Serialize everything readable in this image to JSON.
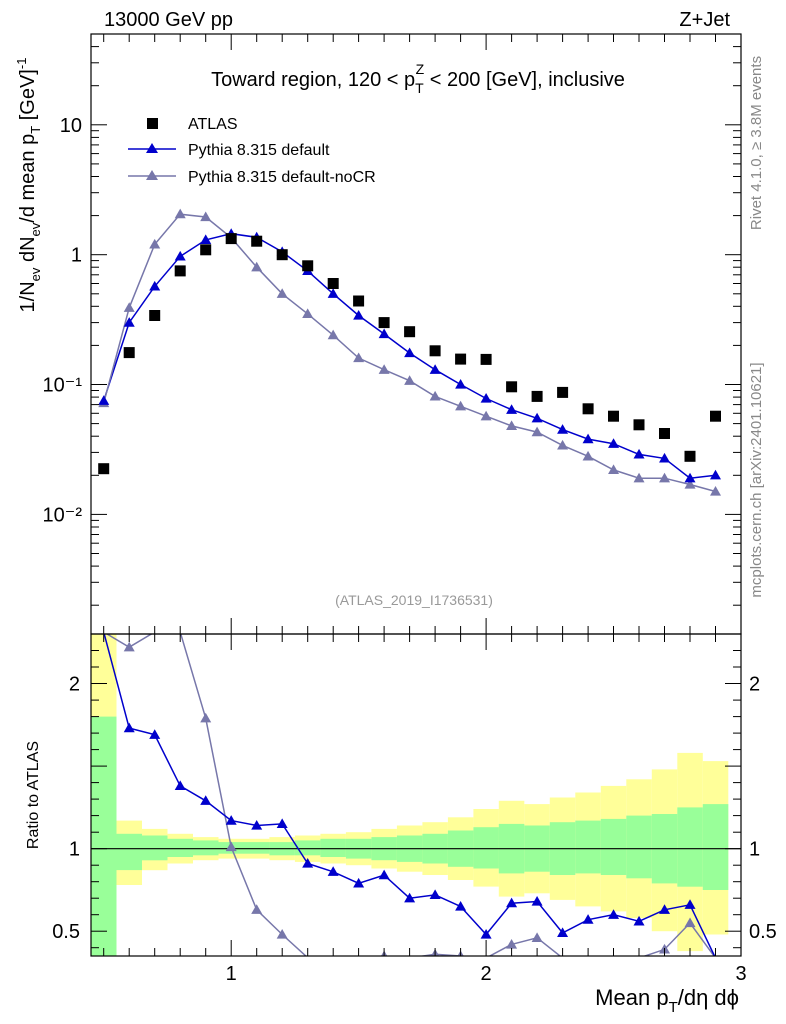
{
  "header": {
    "energy_label": "13000 GeV pp",
    "process_label": "Z+Jet"
  },
  "side_labels": {
    "rivet": "Rivet 4.1.0, ≥ 3.8M events",
    "source": "mcplots.cern.ch [arXiv:2401.10621]"
  },
  "colors": {
    "atlas": "#000000",
    "default": "#0000cc",
    "nocr": "#7777aa",
    "band_inner": "#99ff99",
    "band_outer": "#ffff99"
  },
  "chart_data": [
    {
      "type": "scatter",
      "panel": "main",
      "title_parts": {
        "pre": "Toward region, 120 < p",
        "sub": "T",
        "sup": "Z",
        "post": " < 200 [GeV], inclusive"
      },
      "ylabel": "1/N_ev dN_ev/d mean p_T [GeV]^-1",
      "ylabel_parts": {
        "a": "1/N",
        "a_sub": "ev",
        "b": " dN",
        "b_sub": "ev",
        "c": "/d mean p",
        "c_sub": "T",
        "d": " [GeV]",
        "d_sup": "-1"
      },
      "yscale": "log",
      "ylim": [
        0.0012,
        50
      ],
      "xlim": [
        0.45,
        3.0
      ],
      "y_ticks": [
        {
          "value": 10,
          "label": "10"
        },
        {
          "value": 1,
          "label": "1"
        },
        {
          "value": 0.1,
          "label": "10⁻¹"
        },
        {
          "value": 0.01,
          "label": "10⁻²"
        }
      ],
      "analysis_id": "(ATLAS_2019_I1736531)",
      "legend": [
        {
          "name": "ATLAS",
          "marker": "square"
        },
        {
          "name": "Pythia 8.315 default",
          "marker": "triangle"
        },
        {
          "name": "Pythia 8.315 default-noCR",
          "marker": "triangle"
        }
      ],
      "x": [
        0.5,
        0.6,
        0.7,
        0.8,
        0.9,
        1.0,
        1.1,
        1.2,
        1.3,
        1.4,
        1.5,
        1.6,
        1.7,
        1.8,
        1.9,
        2.0,
        2.1,
        2.2,
        2.3,
        2.4,
        2.5,
        2.6,
        2.7,
        2.8,
        2.9
      ],
      "series": [
        {
          "name": "ATLAS",
          "values": [
            0.0225,
            0.176,
            0.34,
            0.75,
            1.09,
            1.33,
            1.27,
            1.0,
            0.82,
            0.6,
            0.44,
            0.3,
            0.255,
            0.182,
            0.157,
            0.156,
            0.096,
            0.081,
            0.087,
            0.065,
            0.057,
            0.049,
            0.042,
            0.028,
            0.057
          ]
        },
        {
          "name": "Pythia 8.315 default",
          "values": [
            0.075,
            0.3,
            0.57,
            0.97,
            1.3,
            1.45,
            1.36,
            1.05,
            0.75,
            0.5,
            0.34,
            0.245,
            0.175,
            0.13,
            0.1,
            0.078,
            0.064,
            0.055,
            0.045,
            0.038,
            0.035,
            0.029,
            0.027,
            0.019,
            0.02
          ]
        },
        {
          "name": "Pythia 8.315 default-noCR",
          "values": [
            0.072,
            0.39,
            1.2,
            2.05,
            1.95,
            1.35,
            0.8,
            0.5,
            0.35,
            0.24,
            0.16,
            0.13,
            0.107,
            0.081,
            0.068,
            0.057,
            0.048,
            0.043,
            0.034,
            0.028,
            0.022,
            0.019,
            0.019,
            0.017,
            0.015
          ]
        }
      ]
    },
    {
      "type": "line",
      "panel": "ratio",
      "ylabel": "Ratio to ATLAS",
      "xlabel_parts": {
        "a": "Mean p",
        "a_sub": "T",
        "b": "/dη dϕ"
      },
      "ylim": [
        0.35,
        2.3
      ],
      "xlim": [
        0.45,
        3.0
      ],
      "y_ticks": [
        {
          "value": 2,
          "label": "2"
        },
        {
          "value": 1.5,
          "label": ""
        },
        {
          "value": 1,
          "label": "1"
        },
        {
          "value": 0.5,
          "label": "0.5"
        }
      ],
      "x_ticks": [
        {
          "value": 1,
          "label": "1"
        },
        {
          "value": 2,
          "label": "2"
        },
        {
          "value": 3,
          "label": "3"
        }
      ],
      "bin_edges": [
        0.45,
        0.55,
        0.65,
        0.75,
        0.85,
        0.95,
        1.05,
        1.15,
        1.25,
        1.35,
        1.45,
        1.55,
        1.65,
        1.75,
        1.85,
        1.95,
        2.05,
        2.15,
        2.25,
        2.35,
        2.45,
        2.55,
        2.65,
        2.75,
        2.85,
        2.95
      ],
      "band_inner": [
        [
          0.18,
          1.8
        ],
        [
          0.87,
          1.09
        ],
        [
          0.93,
          1.08
        ],
        [
          0.95,
          1.06
        ],
        [
          0.96,
          1.05
        ],
        [
          0.97,
          1.04
        ],
        [
          0.97,
          1.04
        ],
        [
          0.96,
          1.04
        ],
        [
          0.96,
          1.05
        ],
        [
          0.95,
          1.06
        ],
        [
          0.94,
          1.06
        ],
        [
          0.93,
          1.07
        ],
        [
          0.92,
          1.08
        ],
        [
          0.91,
          1.09
        ],
        [
          0.89,
          1.11
        ],
        [
          0.88,
          1.13
        ],
        [
          0.85,
          1.15
        ],
        [
          0.86,
          1.14
        ],
        [
          0.84,
          1.16
        ],
        [
          0.85,
          1.17
        ],
        [
          0.84,
          1.18
        ],
        [
          0.82,
          1.2
        ],
        [
          0.79,
          1.21
        ],
        [
          0.77,
          1.25
        ],
        [
          0.75,
          1.27
        ]
      ],
      "band_outer": [
        [
          0.12,
          2.4
        ],
        [
          0.78,
          1.17
        ],
        [
          0.87,
          1.12
        ],
        [
          0.91,
          1.09
        ],
        [
          0.93,
          1.07
        ],
        [
          0.94,
          1.06
        ],
        [
          0.94,
          1.06
        ],
        [
          0.93,
          1.07
        ],
        [
          0.92,
          1.08
        ],
        [
          0.91,
          1.09
        ],
        [
          0.9,
          1.1
        ],
        [
          0.88,
          1.12
        ],
        [
          0.86,
          1.14
        ],
        [
          0.84,
          1.16
        ],
        [
          0.81,
          1.19
        ],
        [
          0.77,
          1.24
        ],
        [
          0.71,
          1.29
        ],
        [
          0.73,
          1.27
        ],
        [
          0.69,
          1.31
        ],
        [
          0.65,
          1.34
        ],
        [
          0.62,
          1.38
        ],
        [
          0.58,
          1.42
        ],
        [
          0.5,
          1.48
        ],
        [
          0.38,
          1.58
        ],
        [
          0.48,
          1.53
        ]
      ],
      "series": [
        {
          "name": "Pythia 8.315 default",
          "values": [
            3.2,
            1.73,
            1.69,
            1.38,
            1.29,
            1.17,
            1.14,
            1.15,
            0.91,
            0.86,
            0.79,
            0.84,
            0.7,
            0.72,
            0.65,
            0.48,
            0.67,
            0.68,
            0.49,
            0.57,
            0.6,
            0.56,
            0.63,
            0.66,
            0.33
          ]
        },
        {
          "name": "Pythia 8.315 default-noCR",
          "values": [
            3.2,
            2.22,
            3.5,
            2.7,
            1.79,
            1.01,
            0.63,
            0.48,
            0.34,
            0.32,
            0.3,
            0.35,
            0.33,
            0.36,
            0.35,
            0.24,
            0.42,
            0.46,
            0.28,
            0.32,
            0.28,
            0.25,
            0.39,
            0.55,
            0.25
          ]
        }
      ]
    }
  ]
}
